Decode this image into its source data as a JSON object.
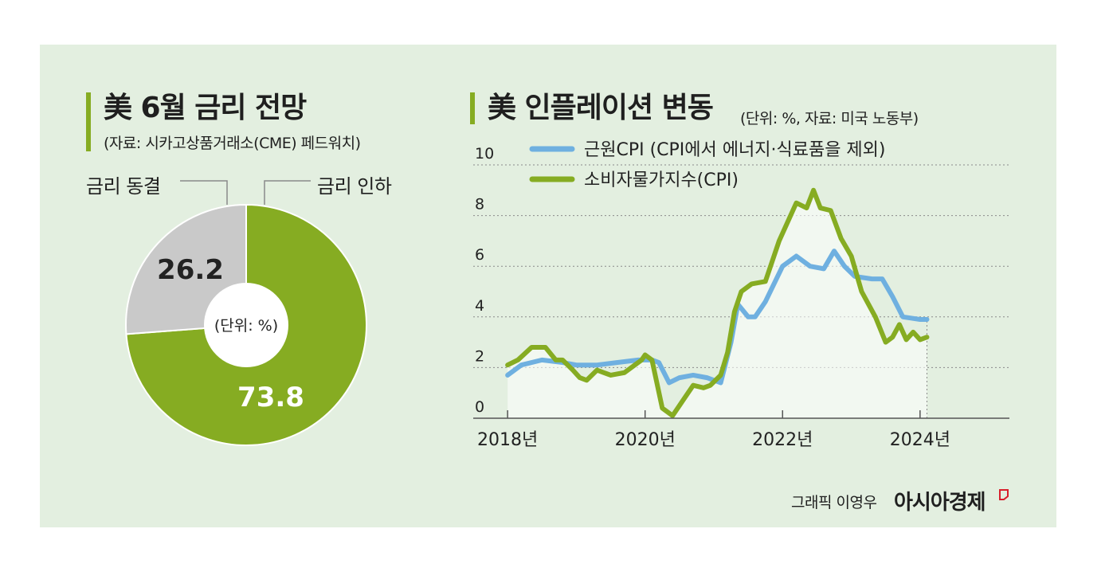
{
  "left": {
    "title": "美 6월 금리 전망",
    "source": "(자료: 시카고상품거래소(CME) 페드워치)",
    "labels": {
      "freeze": "금리 동결",
      "cut": "금리 인하"
    },
    "unit": "(단위: %)"
  },
  "right": {
    "title": "美 인플레이션 변동",
    "subtitle": "(단위: %, 자료: 미국 노동부)"
  },
  "credit": {
    "text": "그래픽 이영우",
    "brand": "아시아경제"
  },
  "colors": {
    "panel_bg": "#e3efe0",
    "green": "#86ac22",
    "gray": "#c9c9c9",
    "blue": "#6fb0e0"
  },
  "chart_data": [
    {
      "type": "pie",
      "title": "美 6월 금리 전망",
      "variant": "donut",
      "slices": [
        {
          "label": "금리 인하",
          "value": 73.8,
          "value_label": "73.8",
          "color": "#86ac22"
        },
        {
          "label": "금리 동결",
          "value": 26.2,
          "value_label": "26.2",
          "color": "#c9c9c9"
        }
      ],
      "center_label": "(단위: %)"
    },
    {
      "type": "line",
      "title": "美 인플레이션 변동",
      "ylim": [
        0,
        10
      ],
      "yticks": [
        0,
        2,
        4,
        6,
        8,
        10
      ],
      "xlim": [
        2017.5,
        2025.3
      ],
      "xticks": [
        {
          "value": 2018,
          "label": "2018년"
        },
        {
          "value": 2020,
          "label": "2020년"
        },
        {
          "value": 2022,
          "label": "2022년"
        },
        {
          "value": 2024,
          "label": "2024년"
        }
      ],
      "grid": true,
      "legend": "top-left",
      "series": [
        {
          "name": "근원CPI (CPI에서 에너지·식료품을 제외)",
          "color": "#6fb0e0",
          "points": [
            [
              2018.0,
              1.7
            ],
            [
              2018.2,
              2.1
            ],
            [
              2018.5,
              2.3
            ],
            [
              2018.8,
              2.2
            ],
            [
              2019.0,
              2.1
            ],
            [
              2019.3,
              2.1
            ],
            [
              2019.6,
              2.2
            ],
            [
              2019.9,
              2.3
            ],
            [
              2020.1,
              2.3
            ],
            [
              2020.2,
              2.2
            ],
            [
              2020.35,
              1.4
            ],
            [
              2020.5,
              1.6
            ],
            [
              2020.7,
              1.7
            ],
            [
              2020.9,
              1.6
            ],
            [
              2021.1,
              1.4
            ],
            [
              2021.25,
              3.0
            ],
            [
              2021.35,
              4.5
            ],
            [
              2021.5,
              4.0
            ],
            [
              2021.6,
              4.0
            ],
            [
              2021.75,
              4.6
            ],
            [
              2022.0,
              6.0
            ],
            [
              2022.2,
              6.4
            ],
            [
              2022.4,
              6.0
            ],
            [
              2022.6,
              5.9
            ],
            [
              2022.75,
              6.6
            ],
            [
              2022.9,
              6.0
            ],
            [
              2023.05,
              5.6
            ],
            [
              2023.3,
              5.5
            ],
            [
              2023.45,
              5.5
            ],
            [
              2023.6,
              4.8
            ],
            [
              2023.75,
              4.0
            ],
            [
              2024.0,
              3.9
            ],
            [
              2024.1,
              3.9
            ]
          ]
        },
        {
          "name": "소비자물가지수(CPI)",
          "color": "#86ac22",
          "points": [
            [
              2018.0,
              2.1
            ],
            [
              2018.15,
              2.3
            ],
            [
              2018.35,
              2.8
            ],
            [
              2018.55,
              2.8
            ],
            [
              2018.7,
              2.3
            ],
            [
              2018.8,
              2.3
            ],
            [
              2018.95,
              1.9
            ],
            [
              2019.05,
              1.6
            ],
            [
              2019.15,
              1.5
            ],
            [
              2019.3,
              1.9
            ],
            [
              2019.4,
              1.8
            ],
            [
              2019.5,
              1.7
            ],
            [
              2019.7,
              1.8
            ],
            [
              2019.85,
              2.1
            ],
            [
              2019.95,
              2.3
            ],
            [
              2020.0,
              2.5
            ],
            [
              2020.1,
              2.3
            ],
            [
              2020.25,
              0.4
            ],
            [
              2020.4,
              0.1
            ],
            [
              2020.55,
              0.7
            ],
            [
              2020.7,
              1.3
            ],
            [
              2020.85,
              1.2
            ],
            [
              2020.95,
              1.3
            ],
            [
              2021.1,
              1.7
            ],
            [
              2021.2,
              2.6
            ],
            [
              2021.3,
              4.2
            ],
            [
              2021.4,
              5.0
            ],
            [
              2021.55,
              5.3
            ],
            [
              2021.75,
              5.4
            ],
            [
              2021.95,
              7.0
            ],
            [
              2022.1,
              7.9
            ],
            [
              2022.2,
              8.5
            ],
            [
              2022.35,
              8.3
            ],
            [
              2022.45,
              9.0
            ],
            [
              2022.55,
              8.3
            ],
            [
              2022.7,
              8.2
            ],
            [
              2022.85,
              7.1
            ],
            [
              2023.0,
              6.4
            ],
            [
              2023.15,
              5.0
            ],
            [
              2023.35,
              4.0
            ],
            [
              2023.5,
              3.0
            ],
            [
              2023.6,
              3.2
            ],
            [
              2023.7,
              3.7
            ],
            [
              2023.8,
              3.1
            ],
            [
              2023.9,
              3.4
            ],
            [
              2024.0,
              3.1
            ],
            [
              2024.1,
              3.2
            ]
          ]
        }
      ]
    }
  ]
}
